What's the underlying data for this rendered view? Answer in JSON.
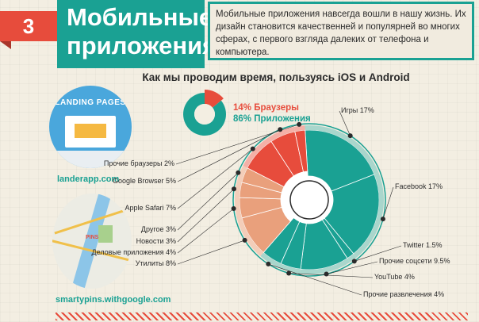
{
  "header": {
    "number": "3",
    "title_line1": "Мобильные",
    "title_line2": "приложения",
    "intro": "Мобильные приложения навсегда вошли в нашу жизнь. Их дизайн становится качественней и популярней во многих сферах, с первого взгляда далеких от телефона и компьютера."
  },
  "section_heading": "Как мы проводим время, пользуясь iOS и Android",
  "thumbnails": {
    "lander_title": "LANDING PAGES",
    "lander_caption": "landerapp.com",
    "map_pin": "PINS",
    "map_caption": "smartypins.withgoogle.com"
  },
  "colors": {
    "teal": "#1aa193",
    "red": "#e74c3c",
    "salmon": "#e9a07c",
    "light_teal": "#a9d6cc"
  },
  "chart_data": [
    {
      "type": "pie",
      "slices": [
        {
          "label": "14% Браузеры",
          "value": 14,
          "color": "#e74c3c"
        },
        {
          "label": "86% Приложения",
          "value": 86,
          "color": "#1aa193"
        }
      ]
    },
    {
      "type": "pie",
      "slices": [
        {
          "label": "Игры 17%",
          "value": 17,
          "color": "#1aa193"
        },
        {
          "label": "Facebook 17%",
          "value": 17,
          "color": "#1aa193"
        },
        {
          "label": "Twitter 1.5%",
          "value": 1.5,
          "color": "#1aa193"
        },
        {
          "label": "Прочие соцсети 9.5%",
          "value": 9.5,
          "color": "#1aa193"
        },
        {
          "label": "YouTube 4%",
          "value": 4,
          "color": "#1aa193"
        },
        {
          "label": "Прочие развлечения 4%",
          "value": 4,
          "color": "#1aa193"
        },
        {
          "label": "Утилиты 8%",
          "value": 8,
          "color": "#e9a07c"
        },
        {
          "label": "Деловые приложения 4%",
          "value": 4,
          "color": "#e9a07c"
        },
        {
          "label": "Новости 3%",
          "value": 3,
          "color": "#e9a07c"
        },
        {
          "label": "Другое 3%",
          "value": 3,
          "color": "#e9a07c"
        },
        {
          "label": "Apple Safari 7%",
          "value": 7,
          "color": "#e74c3c"
        },
        {
          "label": "Google Browser 5%",
          "value": 5,
          "color": "#e74c3c"
        },
        {
          "label": "Прочие браузеры 2%",
          "value": 2,
          "color": "#e74c3c"
        }
      ]
    }
  ]
}
